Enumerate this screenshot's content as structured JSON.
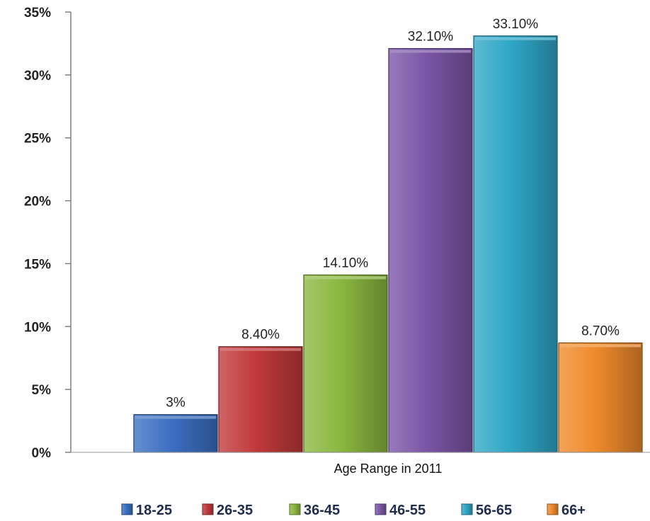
{
  "chart_data": {
    "type": "bar",
    "xlabel": "Age Range in 2011",
    "ylabel": "",
    "title": "",
    "ylim": [
      0,
      35
    ],
    "y_ticks": [
      "0%",
      "5%",
      "10%",
      "15%",
      "20%",
      "25%",
      "30%",
      "35%"
    ],
    "y_tick_values": [
      0,
      5,
      10,
      15,
      20,
      25,
      30,
      35
    ],
    "legend_position": "bottom",
    "grid": false,
    "series": [
      {
        "name": "18-25",
        "value": 3.0,
        "label": "3%",
        "color": "#3a6fc2"
      },
      {
        "name": "26-35",
        "value": 8.4,
        "label": "8.40%",
        "color": "#c0393b"
      },
      {
        "name": "36-45",
        "value": 14.1,
        "label": "14.10%",
        "color": "#8ab73f"
      },
      {
        "name": "46-55",
        "value": 32.1,
        "label": "32.10%",
        "color": "#7b55a6"
      },
      {
        "name": "56-65",
        "value": 33.1,
        "label": "33.10%",
        "color": "#2fa6c6"
      },
      {
        "name": "66+",
        "value": 8.7,
        "label": "8.70%",
        "color": "#ee8a2c"
      }
    ]
  }
}
